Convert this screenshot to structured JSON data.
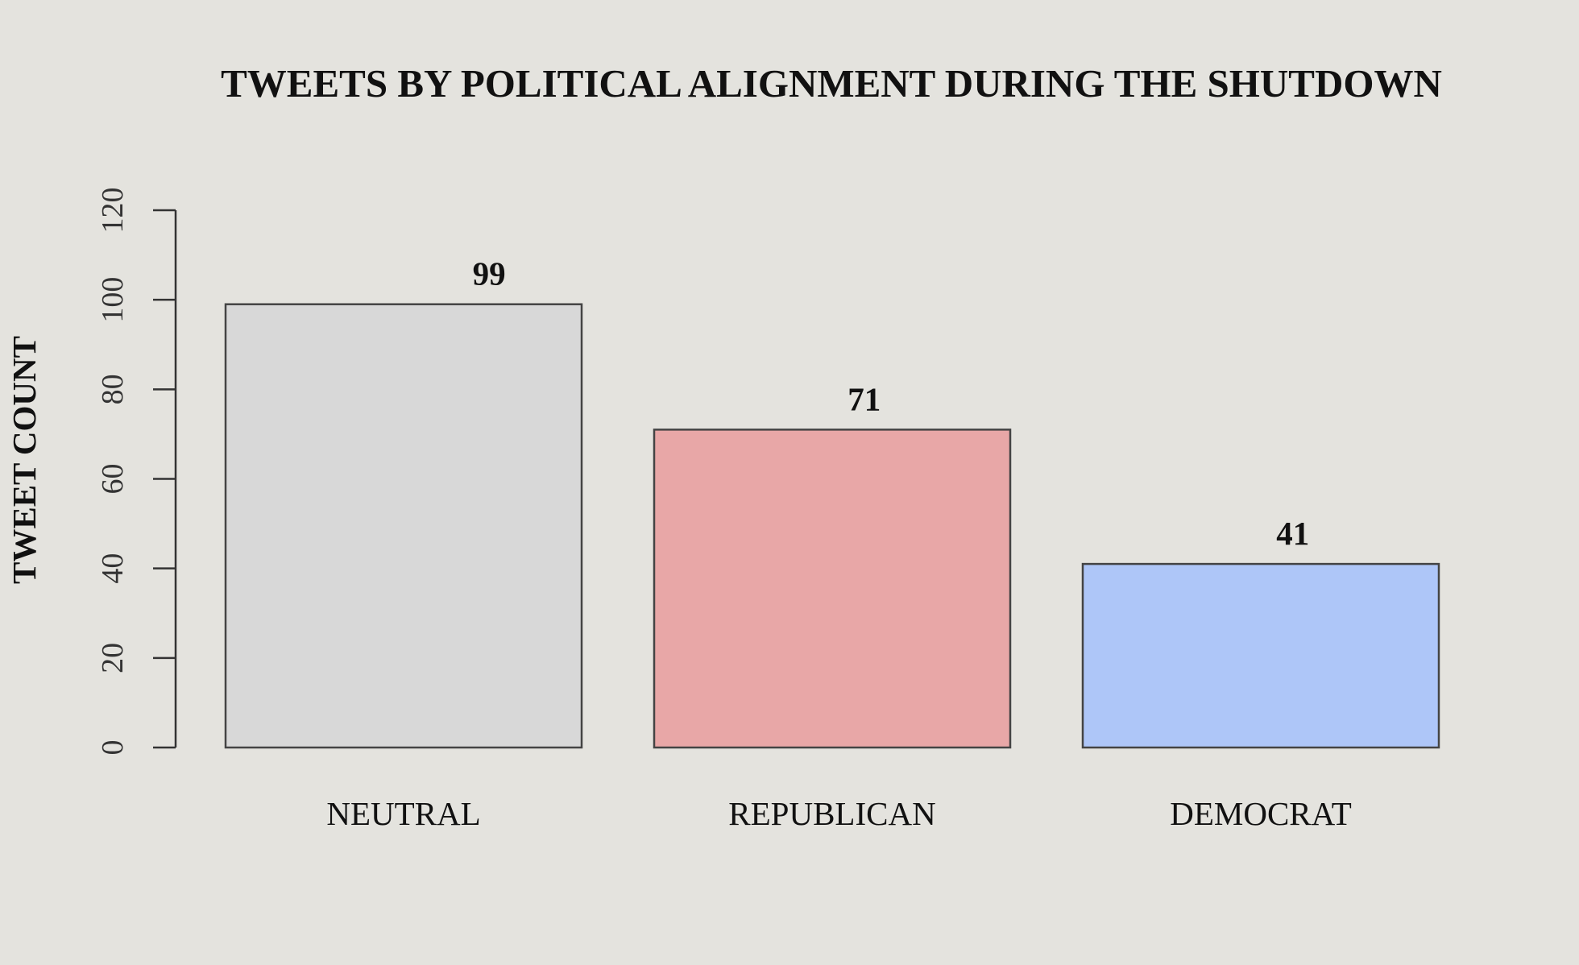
{
  "chart_data": {
    "type": "bar",
    "title": "TWEETS BY POLITICAL ALIGNMENT DURING THE SHUTDOWN",
    "xlabel": "",
    "ylabel": "TWEET COUNT",
    "categories": [
      "NEUTRAL",
      "REPUBLICAN",
      "DEMOCRAT"
    ],
    "values": [
      99,
      71,
      41
    ],
    "data_labels": [
      "99",
      "71",
      "41"
    ],
    "bar_colors": [
      "#d8d8d8",
      "#e8a7a7",
      "#aec6f8"
    ],
    "ylim": [
      0,
      120
    ],
    "yticks": [
      0,
      20,
      40,
      60,
      80,
      100,
      120
    ],
    "grid": false,
    "legend": "none"
  }
}
